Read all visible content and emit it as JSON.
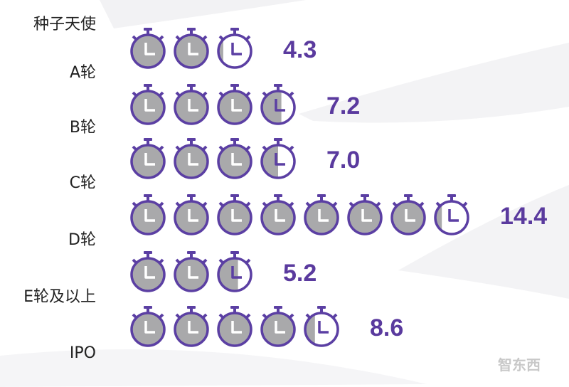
{
  "chart_data": {
    "type": "pictograph",
    "stages": [
      "种子天使",
      "A轮",
      "B轮",
      "C轮",
      "D轮",
      "E轮及以上",
      "IPO"
    ],
    "values": [
      4.3,
      7.2,
      7.0,
      14.4,
      5.2,
      8.6
    ],
    "value_labels": [
      "4.3",
      "7.2",
      "7.0",
      "14.4",
      "5.2",
      "8.6"
    ],
    "color": "#5b3fa3",
    "fill_color": "#a9a9ab"
  },
  "watermark": "智东西"
}
